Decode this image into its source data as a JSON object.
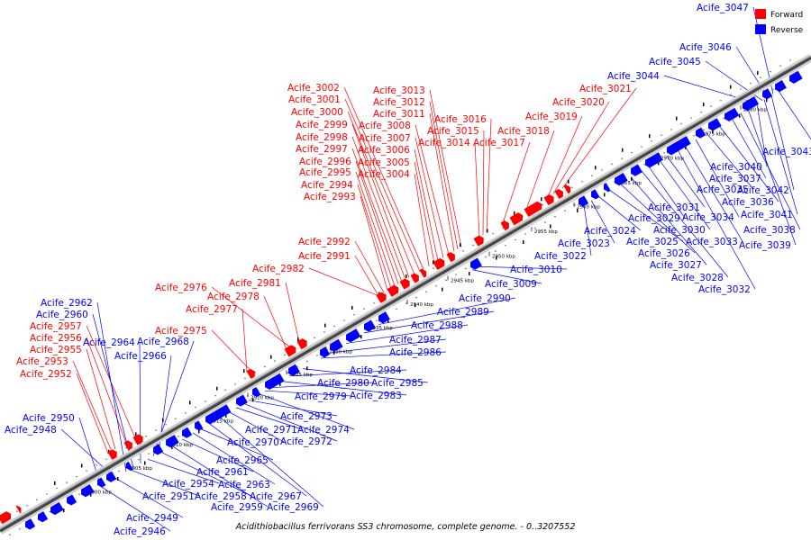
{
  "legend": {
    "forward_label": "Forward",
    "reverse_label": "Reverse",
    "forward_color": "#ff0000",
    "reverse_color": "#0000ff"
  },
  "caption": "Acidithiobacillus ferrivorans SS3 chromosome, complete genome. - 0..3207552",
  "ticks": [
    "2900 kbp",
    "2905 kbp",
    "2910 kbp",
    "2915 kbp",
    "2920 kbp",
    "2925 kbp",
    "2930 kbp",
    "2935 kbp",
    "2940 kbp",
    "2945 kbp",
    "2950 kbp",
    "2955 kbp",
    "2960 kbp",
    "2965 kbp",
    "2970 kbp",
    "2975 kbp",
    "2980 kbp"
  ],
  "forward_labels": [
    "Acife_2952",
    "Acife_2953",
    "Acife_2955",
    "Acife_2956",
    "Acife_2957",
    "Acife_2975",
    "Acife_2977",
    "Acife_2978",
    "Acife_2976",
    "Acife_2981",
    "Acife_2982",
    "Acife_2991",
    "Acife_2992",
    "Acife_2993",
    "Acife_2994",
    "Acife_2995",
    "Acife_2996",
    "Acife_2997",
    "Acife_2998",
    "Acife_2999",
    "Acife_3000",
    "Acife_3001",
    "Acife_3002",
    "Acife_3004",
    "Acife_3005",
    "Acife_3006",
    "Acife_3007",
    "Acife_3008",
    "Acife_3011",
    "Acife_3012",
    "Acife_3013",
    "Acife_3014",
    "Acife_3015",
    "Acife_3016",
    "Acife_3017",
    "Acife_3018",
    "Acife_3019",
    "Acife_3020",
    "Acife_3021"
  ],
  "reverse_labels": [
    "Acife_2962",
    "Acife_2960",
    "Acife_2964",
    "Acife_2968",
    "Acife_2966",
    "Acife_2950",
    "Acife_2948",
    "Acife_2946",
    "Acife_2949",
    "Acife_2951",
    "Acife_2954",
    "Acife_2958",
    "Acife_2959",
    "Acife_2961",
    "Acife_2963",
    "Acife_2965",
    "Acife_2967",
    "Acife_2969",
    "Acife_2970",
    "Acife_2971",
    "Acife_2972",
    "Acife_2973",
    "Acife_2974",
    "Acife_2979",
    "Acife_2980",
    "Acife_2983",
    "Acife_2984",
    "Acife_2985",
    "Acife_2986",
    "Acife_2987",
    "Acife_2988",
    "Acife_2989",
    "Acife_2990",
    "Acife_3009",
    "Acife_3010",
    "Acife_3022",
    "Acife_3023",
    "Acife_3024",
    "Acife_3025",
    "Acife_3026",
    "Acife_3027",
    "Acife_3028",
    "Acife_3029",
    "Acife_3030",
    "Acife_3031",
    "Acife_3032",
    "Acife_3033",
    "Acife_3034",
    "Acife_3035",
    "Acife_3036",
    "Acife_3037",
    "Acife_3038",
    "Acife_3039",
    "Acife_3040",
    "Acife_3041",
    "Acife_3042",
    "Acife_3043",
    "Acife_3044",
    "Acife_3045",
    "Acife_3046",
    "Acife_3047"
  ]
}
